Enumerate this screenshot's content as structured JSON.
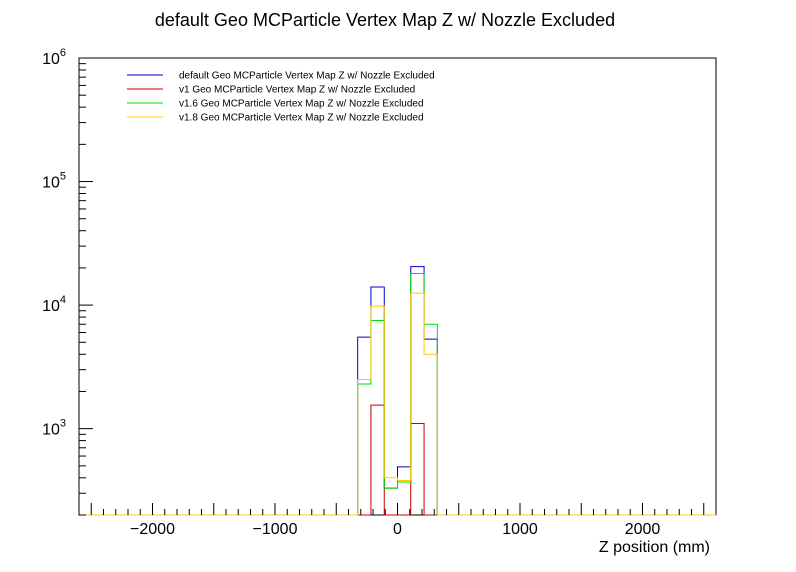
{
  "chart_data": {
    "type": "line",
    "title": "default Geo MCParticle Vertex Map Z w/ Nozzle Excluded",
    "xlabel": "Z position (mm)",
    "ylabel": "",
    "xlim": [
      -2600,
      2600
    ],
    "ylim": [
      200,
      1000000
    ],
    "yscale": "log",
    "grid": false,
    "legend_position": "top-left",
    "x_ticks": [
      {
        "value": -2000,
        "label": "−2000"
      },
      {
        "value": -1000,
        "label": "−1000"
      },
      {
        "value": 0,
        "label": "0"
      },
      {
        "value": 1000,
        "label": "1000"
      },
      {
        "value": 2000,
        "label": "2000"
      }
    ],
    "y_ticks": [
      {
        "value": 1000,
        "base": "10",
        "exp": "3"
      },
      {
        "value": 10000,
        "base": "10",
        "exp": "4"
      },
      {
        "value": 100000,
        "base": "10",
        "exp": "5"
      },
      {
        "value": 1000000,
        "base": "10",
        "exp": "6"
      }
    ],
    "bin_edges": [
      -325,
      -217,
      -108,
      0,
      108,
      217,
      325
    ],
    "series": [
      {
        "name": "default Geo MCParticle Vertex Map Z w/ Nozzle Excluded",
        "color": "#0000cc",
        "values": [
          5500,
          14000,
          330,
          490,
          20500,
          5300
        ]
      },
      {
        "name": "v1 Geo MCParticle Vertex Map Z w/ Nozzle Excluded",
        "color": "#cc0000",
        "values": [
          0,
          1550,
          0,
          0,
          1100,
          0
        ]
      },
      {
        "name": "v1.6 Geo MCParticle Vertex Map Z w/ Nozzle Excluded",
        "color": "#00dd00",
        "values": [
          2300,
          7500,
          330,
          370,
          18000,
          7000
        ]
      },
      {
        "name": "v1.8 Geo MCParticle Vertex Map Z w/ Nozzle Excluded",
        "color": "#ffcc00",
        "values": [
          2500,
          9800,
          400,
          380,
          12500,
          4000
        ]
      }
    ]
  }
}
